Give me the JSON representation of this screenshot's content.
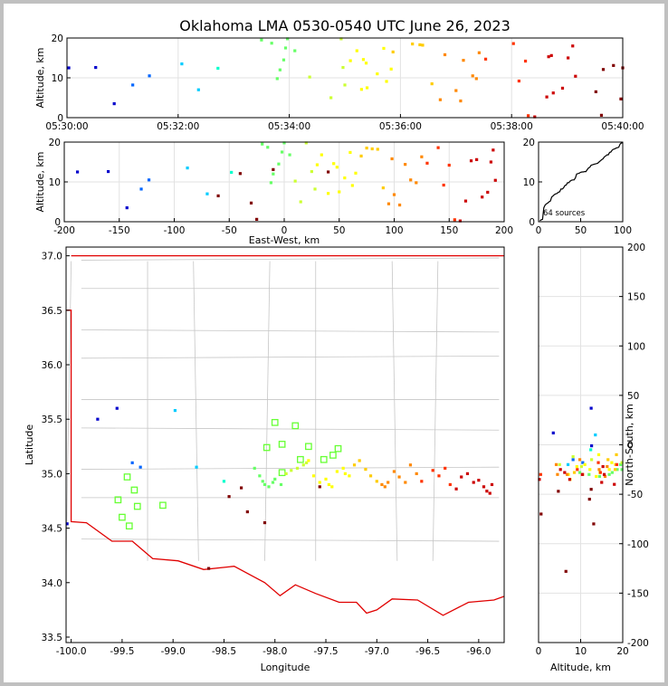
{
  "chart_data": {
    "type": "scatter",
    "title": "Oklahoma LMA 0530-0540 UTC June 26, 2023",
    "source_count_label": "64 sources",
    "colors": [
      "#0000cc",
      "#0066ff",
      "#00ccff",
      "#00ffcc",
      "#66ff66",
      "#ccff33",
      "#ffff00",
      "#ffcc00",
      "#ff8800",
      "#ff3300",
      "#cc0000",
      "#800000"
    ],
    "time_height": {
      "ylabel": "Altitude, km",
      "xticks": [
        "05:30:00",
        "05:32:00",
        "05:34:00",
        "05:36:00",
        "05:38:00",
        "05:40:00"
      ],
      "xlim": [
        0,
        600
      ],
      "ylim": [
        0,
        20
      ],
      "yticks": [
        0,
        10,
        20
      ]
    },
    "ew_alt": {
      "xlabel": "East-West, km",
      "ylabel": "Altitude, km",
      "xlim": [
        -200,
        200
      ],
      "ylim": [
        0,
        20
      ],
      "xticks": [
        -200,
        -150,
        -100,
        -50,
        0,
        50,
        100,
        150,
        200
      ],
      "yticks": [
        0,
        10,
        20
      ]
    },
    "histogram": {
      "xlim": [
        0,
        100
      ],
      "ylim": [
        0,
        20
      ],
      "xticks": [
        0,
        50,
        100
      ],
      "yticks": [
        0,
        10,
        20
      ]
    },
    "plan": {
      "xlabel": "Longitude",
      "ylabel": "Latitude",
      "xlim": [
        -100.05,
        -95.75
      ],
      "ylim": [
        33.45,
        37.08
      ],
      "xticks": [
        -100.0,
        -99.5,
        -99.0,
        -98.5,
        -98.0,
        -97.5,
        -97.0,
        -96.5,
        -96.0
      ],
      "yticks": [
        33.5,
        34.0,
        34.5,
        35.0,
        35.5,
        36.0,
        36.5,
        37.0
      ],
      "stations": [
        [
          -99.45,
          34.97
        ],
        [
          -99.38,
          34.85
        ],
        [
          -99.54,
          34.76
        ],
        [
          -99.35,
          34.7
        ],
        [
          -99.5,
          34.6
        ],
        [
          -99.43,
          34.52
        ],
        [
          -99.1,
          34.71
        ],
        [
          -98.0,
          35.47
        ],
        [
          -97.8,
          35.44
        ],
        [
          -98.08,
          35.24
        ],
        [
          -97.93,
          35.27
        ],
        [
          -97.67,
          35.25
        ],
        [
          -97.38,
          35.23
        ],
        [
          -97.43,
          35.17
        ],
        [
          -97.75,
          35.13
        ],
        [
          -97.52,
          35.13
        ],
        [
          -97.93,
          35.01
        ]
      ]
    },
    "ns_alt": {
      "xlabel": "Altitude, km",
      "ylabel": "North-South, km",
      "xlim": [
        0,
        20
      ],
      "ylim": [
        -200,
        200
      ],
      "xticks": [
        0,
        10,
        20
      ],
      "yticks": [
        -200,
        -150,
        -100,
        -50,
        0,
        50,
        100,
        150,
        200
      ]
    },
    "sources": [
      {
        "t": 2,
        "x": -188,
        "y": 37,
        "z": 12.5,
        "lon": -100.04,
        "lat": 34.54
      },
      {
        "t": 31,
        "x": -160,
        "y": -1,
        "z": 12.6,
        "lon": -99.74,
        "lat": 35.5
      },
      {
        "t": 51,
        "x": -143,
        "y": 12,
        "z": 3.5,
        "lon": -99.55,
        "lat": 35.6
      },
      {
        "t": 71,
        "x": -130,
        "y": -15,
        "z": 8.2,
        "lon": -99.4,
        "lat": 35.1
      },
      {
        "t": 89,
        "x": -123,
        "y": -18,
        "z": 10.5,
        "lon": -99.32,
        "lat": 35.06
      },
      {
        "t": 124,
        "x": -88,
        "y": 10,
        "z": 13.5,
        "lon": -98.98,
        "lat": 35.58
      },
      {
        "t": 142,
        "x": -70,
        "y": -20,
        "z": 7,
        "lon": -98.77,
        "lat": 35.06
      },
      {
        "t": 163,
        "x": -48,
        "y": -5,
        "z": 12.4,
        "lon": -98.5,
        "lat": 34.93
      },
      {
        "t": 210,
        "x": -20,
        "y": -20,
        "z": 19.5,
        "lon": -98.2,
        "lat": 35.05
      },
      {
        "t": 221,
        "x": -15,
        "y": -25,
        "z": 18.7,
        "lon": -98.15,
        "lat": 34.98
      },
      {
        "t": 227,
        "x": -12,
        "y": -28,
        "z": 9.8,
        "lon": -98.12,
        "lat": 34.93
      },
      {
        "t": 230,
        "x": -10,
        "y": -30,
        "z": 12,
        "lon": -98.1,
        "lat": 34.9
      },
      {
        "t": 234,
        "x": -5,
        "y": -32,
        "z": 14.5,
        "lon": -98.06,
        "lat": 34.88
      },
      {
        "t": 236,
        "x": -2,
        "y": -28,
        "z": 17.5,
        "lon": -98.02,
        "lat": 34.92
      },
      {
        "t": 238,
        "x": 0,
        "y": -25,
        "z": 19.8,
        "lon": -98.0,
        "lat": 34.95
      },
      {
        "t": 246,
        "x": 5,
        "y": -30,
        "z": 16.8,
        "lon": -97.94,
        "lat": 34.9
      },
      {
        "t": 262,
        "x": 10,
        "y": -22,
        "z": 10.2,
        "lon": -97.89,
        "lat": 35.0
      },
      {
        "t": 285,
        "x": 15,
        "y": -20,
        "z": 5,
        "lon": -97.84,
        "lat": 35.03
      },
      {
        "t": 296,
        "x": 20,
        "y": -18,
        "z": 19.8,
        "lon": -97.78,
        "lat": 35.05
      },
      {
        "t": 298,
        "x": 25,
        "y": -15,
        "z": 12.6,
        "lon": -97.72,
        "lat": 35.08
      },
      {
        "t": 300,
        "x": 28,
        "y": -12,
        "z": 8.2,
        "lon": -97.69,
        "lat": 35.1
      },
      {
        "t": 306,
        "x": 30,
        "y": -10,
        "z": 14.3,
        "lon": -97.67,
        "lat": 35.12
      },
      {
        "t": 313,
        "x": 34,
        "y": -25,
        "z": 16.8,
        "lon": -97.62,
        "lat": 34.98
      },
      {
        "t": 318,
        "x": 40,
        "y": -30,
        "z": 7.1,
        "lon": -97.56,
        "lat": 34.92
      },
      {
        "t": 320,
        "x": 45,
        "y": -28,
        "z": 14.6,
        "lon": -97.5,
        "lat": 34.95
      },
      {
        "t": 323,
        "x": 48,
        "y": -32,
        "z": 13.7,
        "lon": -97.47,
        "lat": 34.9
      },
      {
        "t": 324,
        "x": 50,
        "y": -35,
        "z": 7.5,
        "lon": -97.44,
        "lat": 34.88
      },
      {
        "t": 335,
        "x": 55,
        "y": -20,
        "z": 11,
        "lon": -97.39,
        "lat": 35.02
      },
      {
        "t": 342,
        "x": 60,
        "y": -18,
        "z": 17.4,
        "lon": -97.33,
        "lat": 35.05
      },
      {
        "t": 345,
        "x": 62,
        "y": -22,
        "z": 9.1,
        "lon": -97.31,
        "lat": 35.0
      },
      {
        "t": 350,
        "x": 65,
        "y": -25,
        "z": 12.2,
        "lon": -97.27,
        "lat": 34.98
      },
      {
        "t": 352,
        "x": 70,
        "y": -15,
        "z": 16.5,
        "lon": -97.22,
        "lat": 35.08
      },
      {
        "t": 373,
        "x": 75,
        "y": -10,
        "z": 18.5,
        "lon": -97.17,
        "lat": 35.12
      },
      {
        "t": 381,
        "x": 80,
        "y": -20,
        "z": 18.3,
        "lon": -97.11,
        "lat": 35.04
      },
      {
        "t": 384,
        "x": 85,
        "y": -25,
        "z": 18.2,
        "lon": -97.06,
        "lat": 34.98
      },
      {
        "t": 394,
        "x": 90,
        "y": -28,
        "z": 8.5,
        "lon": -97.0,
        "lat": 34.93
      },
      {
        "t": 403,
        "x": 95,
        "y": -30,
        "z": 4.5,
        "lon": -96.95,
        "lat": 34.9
      },
      {
        "t": 408,
        "x": 98,
        "y": -32,
        "z": 15.8,
        "lon": -96.92,
        "lat": 34.88
      },
      {
        "t": 420,
        "x": 100,
        "y": -30,
        "z": 6.8,
        "lon": -96.89,
        "lat": 34.92
      },
      {
        "t": 425,
        "x": 105,
        "y": -20,
        "z": 4.2,
        "lon": -96.83,
        "lat": 35.02
      },
      {
        "t": 428,
        "x": 110,
        "y": -25,
        "z": 14.4,
        "lon": -96.78,
        "lat": 34.97
      },
      {
        "t": 438,
        "x": 115,
        "y": -30,
        "z": 10.5,
        "lon": -96.72,
        "lat": 34.92
      },
      {
        "t": 442,
        "x": 120,
        "y": -15,
        "z": 9.8,
        "lon": -96.67,
        "lat": 35.08
      },
      {
        "t": 445,
        "x": 125,
        "y": -22,
        "z": 16.3,
        "lon": -96.61,
        "lat": 35.0
      },
      {
        "t": 452,
        "x": 130,
        "y": -28,
        "z": 14.7,
        "lon": -96.56,
        "lat": 34.93
      },
      {
        "t": 482,
        "x": 140,
        "y": -20,
        "z": 18.6,
        "lon": -96.45,
        "lat": 35.03
      },
      {
        "t": 488,
        "x": 145,
        "y": -25,
        "z": 9.2,
        "lon": -96.39,
        "lat": 34.98
      },
      {
        "t": 495,
        "x": 150,
        "y": -18,
        "z": 14.2,
        "lon": -96.33,
        "lat": 35.05
      },
      {
        "t": 498,
        "x": 155,
        "y": -30,
        "z": 0.5,
        "lon": -96.28,
        "lat": 34.9
      },
      {
        "t": 505,
        "x": 160,
        "y": -35,
        "z": 0.2,
        "lon": -96.22,
        "lat": 34.86
      },
      {
        "t": 518,
        "x": 165,
        "y": -25,
        "z": 5.2,
        "lon": -96.17,
        "lat": 34.97
      },
      {
        "t": 520,
        "x": 170,
        "y": -22,
        "z": 15.3,
        "lon": -96.11,
        "lat": 35.0
      },
      {
        "t": 523,
        "x": 175,
        "y": -30,
        "z": 15.6,
        "lon": -96.05,
        "lat": 34.92
      },
      {
        "t": 525,
        "x": 180,
        "y": -28,
        "z": 6.2,
        "lon": -96.0,
        "lat": 34.94
      },
      {
        "t": 535,
        "x": 185,
        "y": -35,
        "z": 7.4,
        "lon": -95.95,
        "lat": 34.88
      },
      {
        "t": 541,
        "x": 188,
        "y": -38,
        "z": 15,
        "lon": -95.92,
        "lat": 34.84
      },
      {
        "t": 546,
        "x": 190,
        "y": -40,
        "z": 18,
        "lon": -95.89,
        "lat": 34.82
      },
      {
        "t": 549,
        "x": 192,
        "y": -30,
        "z": 10.4,
        "lon": -95.87,
        "lat": 34.9
      },
      {
        "t": 571,
        "x": -60,
        "y": -128,
        "z": 6.5,
        "lon": -98.65,
        "lat": 34.13
      },
      {
        "t": 577,
        "x": -25,
        "y": -70,
        "z": 0.6,
        "lon": -98.27,
        "lat": 34.65
      },
      {
        "t": 579,
        "x": -40,
        "y": -55,
        "z": 12.1,
        "lon": -98.45,
        "lat": 34.79
      },
      {
        "t": 590,
        "x": -10,
        "y": -80,
        "z": 13.1,
        "lon": -98.1,
        "lat": 34.55
      },
      {
        "t": 598,
        "x": -30,
        "y": -47,
        "z": 4.7,
        "lon": -98.33,
        "lat": 34.87
      },
      {
        "t": 600,
        "x": 40,
        "y": -45,
        "z": 12.5,
        "lon": -97.56,
        "lat": 34.88
      }
    ]
  }
}
